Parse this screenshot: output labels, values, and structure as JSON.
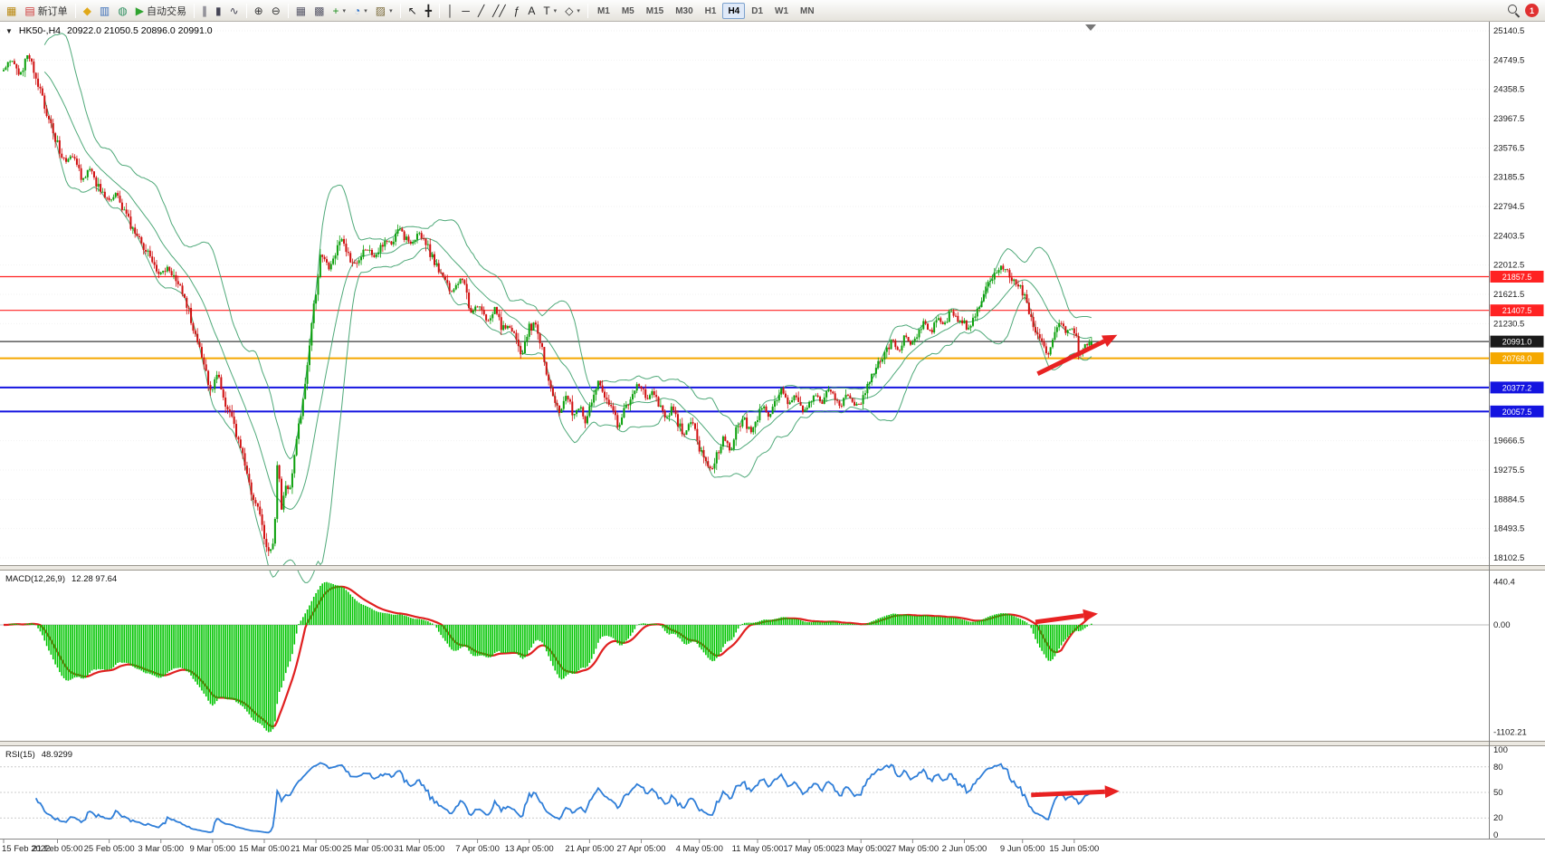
{
  "toolbar": {
    "items": [
      {
        "t": "btn",
        "name": "chart-window-icon",
        "glyph": "▦",
        "gc": "#b8860b"
      },
      {
        "t": "btn",
        "name": "new-order-button",
        "glyph": "▤",
        "gc": "#cc3333",
        "label": "新订单"
      },
      {
        "t": "sep"
      },
      {
        "t": "btn",
        "name": "metaquotes-community-icon",
        "glyph": "◆",
        "gc": "#e0a818"
      },
      {
        "t": "btn",
        "name": "market-watch-icon",
        "glyph": "▥",
        "gc": "#3d6fb8"
      },
      {
        "t": "btn",
        "name": "data-window-icon",
        "glyph": "◍",
        "gc": "#2f8f5f"
      },
      {
        "t": "btn",
        "name": "auto-trading-button",
        "glyph": "▶",
        "gc": "#2fa32f",
        "label": "自动交易"
      },
      {
        "t": "sep"
      },
      {
        "t": "btn",
        "name": "bar-chart-mode-icon",
        "glyph": "∥",
        "gc": "#444455"
      },
      {
        "t": "btn",
        "name": "candlestick-mode-icon",
        "glyph": "▮",
        "gc": "#444455"
      },
      {
        "t": "btn",
        "name": "line-chart-mode-icon",
        "glyph": "∿",
        "gc": "#444455"
      },
      {
        "t": "sep"
      },
      {
        "t": "btn",
        "name": "zoom-in-icon",
        "glyph": "⊕",
        "gc": "#333333"
      },
      {
        "t": "btn",
        "name": "zoom-out-icon",
        "glyph": "⊖",
        "gc": "#333333"
      },
      {
        "t": "sep"
      },
      {
        "t": "btn",
        "name": "tile-windows-icon",
        "glyph": "▦",
        "gc": "#555566"
      },
      {
        "t": "btn",
        "name": "cascade-windows-icon",
        "glyph": "▩",
        "gc": "#555566"
      },
      {
        "t": "btn",
        "name": "indicators-icon",
        "glyph": "+",
        "gc": "#1f8f1f",
        "dd": true
      },
      {
        "t": "btn",
        "name": "periods-icon",
        "glyph": "◔",
        "gc": "#2a6fc9",
        "dd": true
      },
      {
        "t": "btn",
        "name": "templates-icon",
        "glyph": "▨",
        "gc": "#7a6a3a",
        "dd": true
      },
      {
        "t": "sep"
      },
      {
        "t": "btn",
        "name": "cursor-icon",
        "glyph": "↖",
        "gc": "#222222"
      },
      {
        "t": "btn",
        "name": "crosshair-icon",
        "glyph": "╋",
        "gc": "#222222"
      },
      {
        "t": "sep"
      },
      {
        "t": "btn",
        "name": "vertical-line-icon",
        "glyph": "│",
        "gc": "#222222"
      },
      {
        "t": "btn",
        "name": "horizontal-line-icon",
        "glyph": "─",
        "gc": "#222222"
      },
      {
        "t": "btn",
        "name": "trendline-icon",
        "glyph": "╱",
        "gc": "#222222"
      },
      {
        "t": "btn",
        "name": "channel-icon",
        "glyph": "╱╱",
        "gc": "#222222"
      },
      {
        "t": "btn",
        "name": "fibonacci-icon",
        "glyph": "ƒ",
        "gc": "#222222"
      },
      {
        "t": "btn",
        "name": "text-icon",
        "glyph": "A",
        "gc": "#222222"
      },
      {
        "t": "btn",
        "name": "arrows-icon",
        "glyph": "T",
        "gc": "#222222",
        "dd": true
      },
      {
        "t": "btn",
        "name": "shapes-icon",
        "glyph": "◇",
        "gc": "#222222",
        "dd": true
      },
      {
        "t": "sep"
      }
    ],
    "timeframes": [
      "M1",
      "M5",
      "M15",
      "M30",
      "H1",
      "H4",
      "D1",
      "W1",
      "MN"
    ],
    "active_timeframe": "H4",
    "notification_count": "1"
  },
  "chart_header": {
    "dropdown_glyph": "▼",
    "symbol_period": "HK50-,H4",
    "ohlc": "20922.0 21050.5 20896.0 20991.0"
  },
  "chart_data": [
    {
      "type": "candlestick",
      "symbol": "HK50-",
      "timeframe": "H4",
      "open": 20922.0,
      "high": 21050.5,
      "low": 20896.0,
      "close": 20991.0,
      "ylim": [
        18102.5,
        25140.5
      ],
      "y_ticks": [
        25140.5,
        24749.5,
        24358.5,
        23967.5,
        23576.5,
        23185.5,
        22794.5,
        22403.5,
        22012.5,
        21621.5,
        21230.5,
        19666.5,
        19275.5,
        18884.5,
        18493.5,
        18102.5
      ],
      "price_badges": [
        {
          "price": 21857.5,
          "label": "21857.5",
          "color": "#ff2222"
        },
        {
          "price": 21407.5,
          "label": "21407.5",
          "color": "#ff2222"
        },
        {
          "price": 20991.0,
          "label": "20991.0",
          "color": "#1a1a1a"
        },
        {
          "price": 20768.0,
          "label": "20768.0",
          "color": "#f5a800"
        },
        {
          "price": 20377.2,
          "label": "20377.2",
          "color": "#1414e0"
        },
        {
          "price": 20057.5,
          "label": "20057.5",
          "color": "#1414e0"
        }
      ],
      "h_lines": [
        {
          "price": 21857.5,
          "color": "#ff2222",
          "width": 1.2,
          "name": "resistance-line-21857"
        },
        {
          "price": 21407.5,
          "color": "#ff2222",
          "width": 1.2,
          "name": "resistance-line-21407"
        },
        {
          "price": 20991.0,
          "color": "#3a3a3a",
          "width": 1.2,
          "name": "current-price-line"
        },
        {
          "price": 20768.0,
          "color": "#f5a800",
          "width": 2,
          "name": "support-line-20768"
        },
        {
          "price": 20377.2,
          "color": "#1414e0",
          "width": 2,
          "name": "support-line-20377"
        },
        {
          "price": 20057.5,
          "color": "#1414e0",
          "width": 2,
          "name": "support-line-20057"
        }
      ],
      "time_labels": [
        [
          0,
          "15 Feb 2022"
        ],
        [
          25,
          "21 Feb 05:00"
        ],
        [
          49,
          "25 Feb 05:00"
        ],
        [
          73,
          "3 Mar 05:00"
        ],
        [
          97,
          "9 Mar 05:00"
        ],
        [
          121,
          "15 Mar 05:00"
        ],
        [
          145,
          "21 Mar 05:00"
        ],
        [
          169,
          "25 Mar 05:00"
        ],
        [
          193,
          "31 Mar 05:00"
        ],
        [
          220,
          "7 Apr 05:00"
        ],
        [
          244,
          "13 Apr 05:00"
        ],
        [
          272,
          "21 Apr 05:00"
        ],
        [
          296,
          "27 Apr 05:00"
        ],
        [
          323,
          "4 May 05:00"
        ],
        [
          350,
          "11 May 05:00"
        ],
        [
          374,
          "17 May 05:00"
        ],
        [
          398,
          "23 May 05:00"
        ],
        [
          422,
          "27 May 05:00"
        ],
        [
          446,
          "2 Jun 05:00"
        ],
        [
          473,
          "9 Jun 05:00"
        ],
        [
          497,
          "15 Jun 05:00"
        ]
      ],
      "candle_count": 506,
      "last_candle": [
        20922.0,
        21050.5,
        20896.0,
        20991.0
      ],
      "up_color": "#0ba00b",
      "down_color": "#d01010",
      "bollinger": {
        "period": 20,
        "deviation": 2,
        "color": "#3ca06a"
      },
      "arrow": {
        "from": [
          480,
          20560
        ],
        "to": [
          517,
          21080
        ],
        "color": "#e82222"
      },
      "price_path": [
        [
          0,
          24600
        ],
        [
          4,
          24780
        ],
        [
          8,
          24550
        ],
        [
          12,
          24820
        ],
        [
          16,
          24450
        ],
        [
          20,
          24100
        ],
        [
          25,
          23650
        ],
        [
          29,
          23400
        ],
        [
          33,
          23500
        ],
        [
          37,
          23150
        ],
        [
          41,
          23300
        ],
        [
          45,
          23000
        ],
        [
          49,
          22850
        ],
        [
          53,
          22980
        ],
        [
          57,
          22700
        ],
        [
          61,
          22450
        ],
        [
          65,
          22250
        ],
        [
          69,
          22100
        ],
        [
          73,
          21900
        ],
        [
          77,
          21990
        ],
        [
          81,
          21750
        ],
        [
          85,
          21550
        ],
        [
          89,
          21150
        ],
        [
          93,
          20700
        ],
        [
          97,
          20320
        ],
        [
          100,
          20560
        ],
        [
          103,
          20200
        ],
        [
          106,
          20080
        ],
        [
          109,
          19700
        ],
        [
          112,
          19450
        ],
        [
          115,
          19000
        ],
        [
          118,
          18800
        ],
        [
          121,
          18450
        ],
        [
          124,
          18170
        ],
        [
          126,
          18350
        ],
        [
          128,
          19700
        ],
        [
          129,
          18650
        ],
        [
          131,
          19100
        ],
        [
          133,
          18950
        ],
        [
          136,
          19600
        ],
        [
          139,
          20100
        ],
        [
          142,
          20850
        ],
        [
          145,
          21550
        ],
        [
          148,
          22230
        ],
        [
          151,
          21950
        ],
        [
          154,
          22150
        ],
        [
          157,
          22420
        ],
        [
          160,
          22180
        ],
        [
          163,
          21980
        ],
        [
          166,
          22150
        ],
        [
          169,
          22260
        ],
        [
          172,
          22080
        ],
        [
          175,
          22200
        ],
        [
          178,
          22350
        ],
        [
          181,
          22280
        ],
        [
          184,
          22500
        ],
        [
          187,
          22380
        ],
        [
          190,
          22300
        ],
        [
          193,
          22460
        ],
        [
          196,
          22320
        ],
        [
          199,
          22150
        ],
        [
          202,
          21980
        ],
        [
          205,
          21850
        ],
        [
          208,
          21620
        ],
        [
          211,
          21780
        ],
        [
          214,
          21850
        ],
        [
          217,
          21380
        ],
        [
          220,
          21500
        ],
        [
          223,
          21330
        ],
        [
          226,
          21280
        ],
        [
          229,
          21450
        ],
        [
          232,
          21150
        ],
        [
          235,
          21200
        ],
        [
          238,
          21050
        ],
        [
          241,
          20800
        ],
        [
          244,
          21150
        ],
        [
          247,
          21250
        ],
        [
          250,
          20950
        ],
        [
          253,
          20500
        ],
        [
          256,
          20250
        ],
        [
          259,
          20050
        ],
        [
          262,
          20300
        ],
        [
          265,
          19980
        ],
        [
          268,
          20150
        ],
        [
          271,
          19900
        ],
        [
          274,
          20300
        ],
        [
          277,
          20480
        ],
        [
          280,
          20180
        ],
        [
          283,
          20060
        ],
        [
          286,
          19850
        ],
        [
          289,
          20100
        ],
        [
          292,
          20300
        ],
        [
          296,
          20420
        ],
        [
          299,
          20180
        ],
        [
          302,
          20330
        ],
        [
          305,
          20100
        ],
        [
          308,
          19950
        ],
        [
          311,
          20120
        ],
        [
          314,
          19880
        ],
        [
          317,
          19750
        ],
        [
          320,
          19950
        ],
        [
          323,
          19600
        ],
        [
          326,
          19380
        ],
        [
          329,
          19250
        ],
        [
          332,
          19500
        ],
        [
          335,
          19720
        ],
        [
          338,
          19480
        ],
        [
          341,
          19850
        ],
        [
          344,
          19980
        ],
        [
          347,
          19780
        ],
        [
          350,
          19920
        ],
        [
          353,
          20150
        ],
        [
          356,
          20000
        ],
        [
          359,
          20180
        ],
        [
          362,
          20350
        ],
        [
          365,
          20120
        ],
        [
          368,
          20280
        ],
        [
          371,
          20050
        ],
        [
          374,
          20150
        ],
        [
          377,
          20300
        ],
        [
          380,
          20150
        ],
        [
          383,
          20400
        ],
        [
          386,
          20250
        ],
        [
          389,
          20100
        ],
        [
          392,
          20300
        ],
        [
          395,
          20180
        ],
        [
          398,
          20120
        ],
        [
          401,
          20350
        ],
        [
          404,
          20550
        ],
        [
          407,
          20700
        ],
        [
          410,
          20850
        ],
        [
          413,
          21000
        ],
        [
          416,
          20880
        ],
        [
          419,
          21050
        ],
        [
          422,
          20950
        ],
        [
          425,
          21120
        ],
        [
          428,
          21250
        ],
        [
          431,
          21080
        ],
        [
          434,
          21300
        ],
        [
          437,
          21200
        ],
        [
          440,
          21400
        ],
        [
          443,
          21300
        ],
        [
          446,
          21250
        ],
        [
          449,
          21150
        ],
        [
          452,
          21400
        ],
        [
          455,
          21600
        ],
        [
          458,
          21750
        ],
        [
          461,
          21900
        ],
        [
          464,
          22000
        ],
        [
          467,
          21880
        ],
        [
          470,
          21750
        ],
        [
          473,
          21680
        ],
        [
          476,
          21450
        ],
        [
          479,
          21200
        ],
        [
          482,
          20980
        ],
        [
          485,
          20800
        ],
        [
          488,
          21100
        ],
        [
          491,
          21280
        ],
        [
          494,
          21100
        ],
        [
          497,
          21200
        ],
        [
          500,
          20800
        ],
        [
          503,
          20950
        ],
        [
          505,
          20991
        ]
      ]
    },
    {
      "type": "macd-histogram",
      "label": "MACD(12,26,9)",
      "values_text": "12.28 97.64",
      "macd_value": 12.28,
      "signal_value": 97.64,
      "fast": 12,
      "slow": 26,
      "signal_period": 9,
      "max": 440.4,
      "min": -1102.21,
      "y_ticks": [
        {
          "v": 440.4,
          "label": "440.4"
        },
        {
          "v": 0,
          "label": "0.00"
        },
        {
          "v": -1102.21,
          "label": "-1102.21"
        }
      ],
      "histogram_color": "#00c400",
      "signal_color": "#e02020",
      "arrow": {
        "from": [
          479,
          30
        ],
        "to": [
          508,
          115
        ],
        "color": "#e82222"
      }
    },
    {
      "type": "rsi-line",
      "label": "RSI(15)",
      "value_text": "48.9299",
      "value": 48.9299,
      "period": 15,
      "levels": [
        80,
        50,
        20
      ],
      "y_ticks": [
        {
          "v": 100,
          "label": "100"
        },
        {
          "v": 80,
          "label": "80"
        },
        {
          "v": 50,
          "label": "50"
        },
        {
          "v": 20,
          "label": "20"
        },
        {
          "v": 0,
          "label": "0"
        }
      ],
      "line_color": "#2f7ed8",
      "arrow": {
        "from": [
          477,
          47
        ],
        "to": [
          518,
          51.5
        ],
        "color": "#e82222"
      }
    }
  ]
}
